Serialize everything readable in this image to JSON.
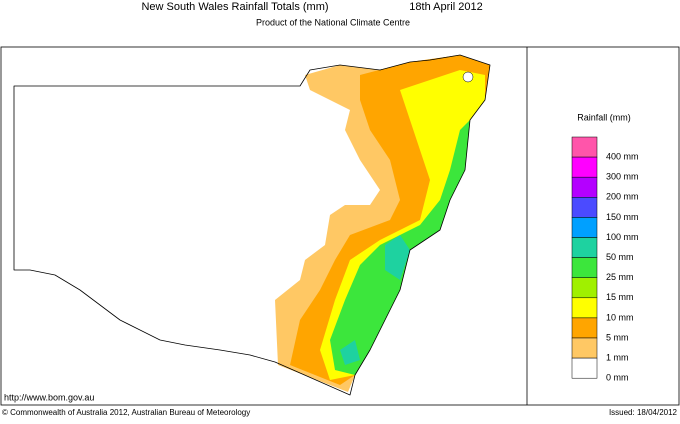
{
  "header": {
    "title": "New South Wales Rainfall Totals (mm)",
    "date": "18th April 2012",
    "subtitle": "Product of the National Climate Centre"
  },
  "legend": {
    "title": "Rainfall (mm)",
    "items": [
      {
        "label": "400 mm",
        "color": "#ff55aa"
      },
      {
        "label": "300 mm",
        "color": "#ff00ff"
      },
      {
        "label": "200 mm",
        "color": "#b400ff"
      },
      {
        "label": "150 mm",
        "color": "#4b4bff"
      },
      {
        "label": "100 mm",
        "color": "#00a0ff"
      },
      {
        "label": "50 mm",
        "color": "#1ed2a0"
      },
      {
        "label": "25 mm",
        "color": "#3ce63c"
      },
      {
        "label": "15 mm",
        "color": "#a0f000"
      },
      {
        "label": "10 mm",
        "color": "#ffff00"
      },
      {
        "label": "5 mm",
        "color": "#ffa500"
      },
      {
        "label": "1 mm",
        "color": "#ffc864"
      },
      {
        "label": "0 mm",
        "color": "#ffffff"
      }
    ]
  },
  "footer": {
    "url": "http://www.bom.gov.au",
    "copyright": "© Commonwealth of Australia 2012, Australian Bureau of Meteorology",
    "issued": "Issued: 18/04/2012"
  }
}
